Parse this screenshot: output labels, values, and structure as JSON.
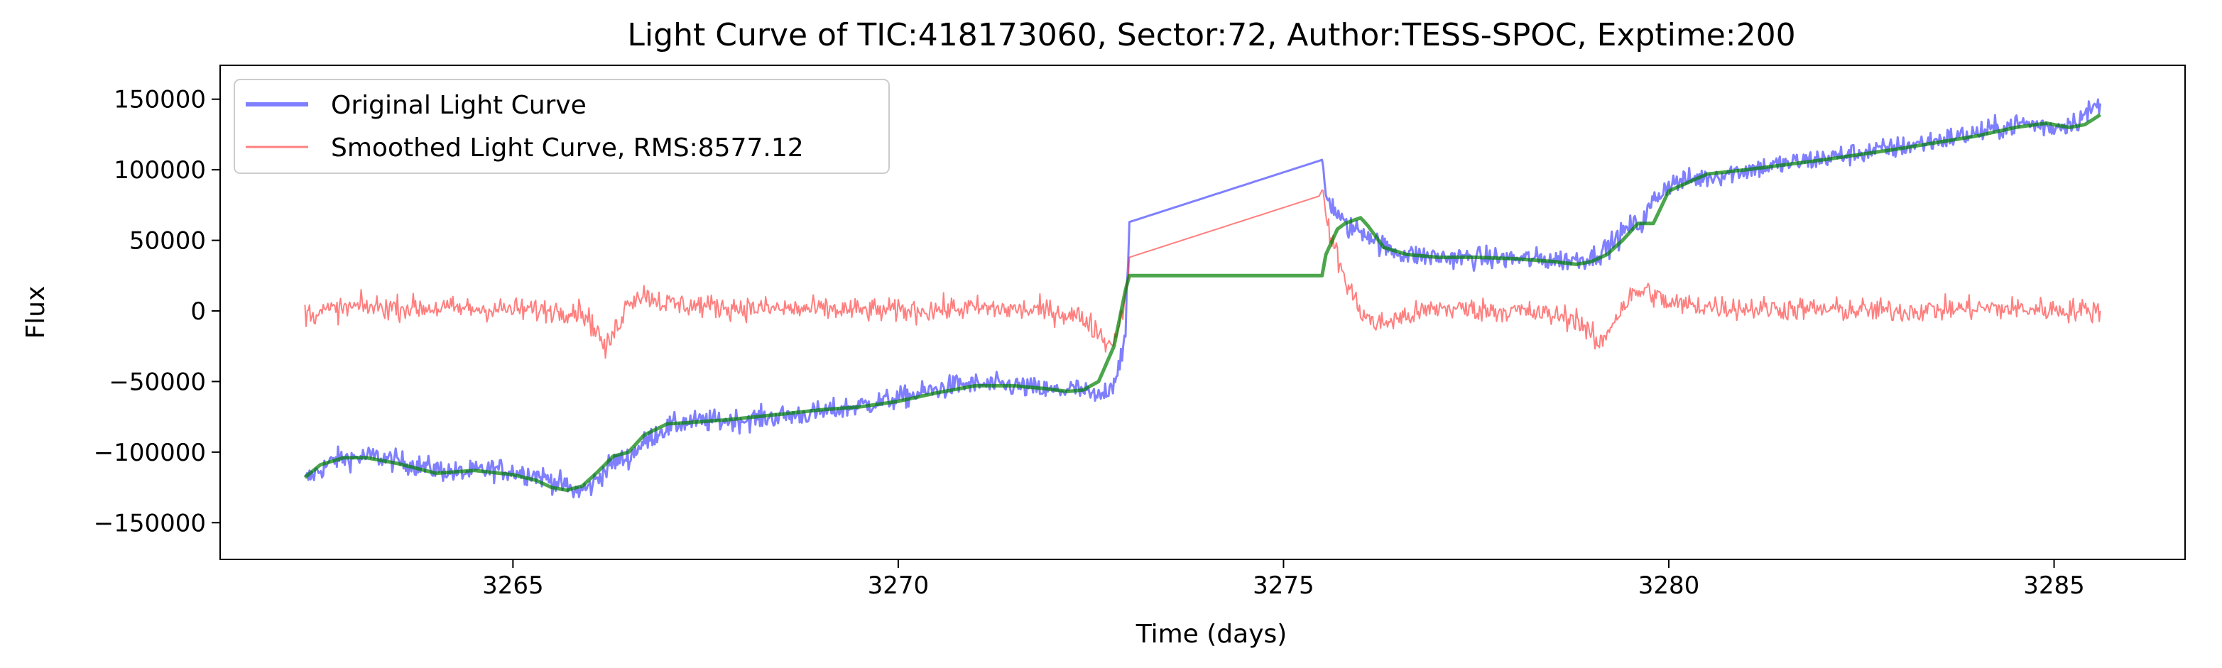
{
  "chart_data": {
    "type": "line",
    "title": "Light Curve of TIC:418173060, Sector:72, Author:TESS-SPOC, Exptime:200",
    "xlabel": "Time (days)",
    "ylabel": "Flux",
    "xlim": [
      3261.2,
      3286.7
    ],
    "ylim": [
      -176000,
      174000
    ],
    "xticks": [
      3265,
      3270,
      3275,
      3280,
      3285
    ],
    "xtick_labels": [
      "3265",
      "3270",
      "3275",
      "3280",
      "3285"
    ],
    "yticks": [
      -150000,
      -100000,
      -50000,
      0,
      50000,
      100000,
      150000
    ],
    "ytick_labels": [
      "−150000",
      "−100000",
      "−50000",
      "0",
      "50000",
      "100000",
      "150000"
    ],
    "grid": false,
    "legend_position": "top-left",
    "legend": [
      "Original Light Curve",
      "Smoothed Light Curve, RMS:8577.12"
    ],
    "series": [
      {
        "name": "Original Light Curve",
        "color": "#0000ff",
        "noise": 7000,
        "x": [
          3262.3,
          3262.7,
          3263.2,
          3263.8,
          3264.3,
          3264.8,
          3265.3,
          3265.6,
          3265.8,
          3266.0,
          3266.1,
          3266.2,
          3266.3,
          3266.5,
          3266.6,
          3266.9,
          3267.2,
          3268.0,
          3269.0,
          3270.0,
          3270.8,
          3271.5,
          3272.0,
          3272.3,
          3272.6,
          3272.8,
          3272.95,
          3273.0,
          3275.5,
          3275.55,
          3275.8,
          3276.1,
          3276.3,
          3276.6,
          3277.0,
          3278.0,
          3278.7,
          3279.0,
          3279.2,
          3279.5,
          3279.65,
          3279.8,
          3280.0,
          3281.0,
          3282.0,
          3283.0,
          3284.0,
          3284.6,
          3285.0,
          3285.3,
          3285.6
        ],
        "y": [
          -120000,
          -105000,
          -103000,
          -110000,
          -115000,
          -112000,
          -116000,
          -122000,
          -128000,
          -125000,
          -118000,
          -113000,
          -107000,
          -104000,
          -98000,
          -85000,
          -79000,
          -77000,
          -72000,
          -62000,
          -52000,
          -53000,
          -57000,
          -55000,
          -62000,
          -50000,
          -20000,
          63000,
          107000,
          82000,
          60000,
          55000,
          45000,
          40000,
          38000,
          37000,
          36000,
          38000,
          45000,
          60000,
          62000,
          78000,
          90000,
          100000,
          108000,
          116000,
          126000,
          133000,
          130000,
          135000,
          147000
        ]
      },
      {
        "name": "Smoothed Light Curve, RMS:8577.12",
        "color": "#ff0000",
        "noise": 7500,
        "x": [
          3262.3,
          3263.0,
          3264.0,
          3265.0,
          3265.9,
          3266.1,
          3266.2,
          3266.4,
          3266.5,
          3266.7,
          3267.0,
          3268.0,
          3269.0,
          3270.0,
          3271.0,
          3272.0,
          3272.4,
          3272.6,
          3272.75,
          3272.9,
          3273.0,
          3275.5,
          3275.6,
          3275.8,
          3276.0,
          3276.2,
          3276.5,
          3277.0,
          3278.0,
          3278.8,
          3279.0,
          3279.1,
          3279.3,
          3279.5,
          3279.7,
          3280.0,
          3281.0,
          3282.0,
          3283.0,
          3284.0,
          3285.0,
          3285.6
        ],
        "y": [
          -2000,
          3000,
          2000,
          1000,
          0,
          -15000,
          -28000,
          -5000,
          8000,
          12000,
          5000,
          2000,
          1000,
          0,
          2000,
          0,
          -5000,
          -15000,
          -25000,
          -5000,
          38000,
          82000,
          55000,
          22000,
          0,
          -10000,
          -5000,
          2000,
          0,
          -5000,
          -18000,
          -25000,
          -5000,
          10000,
          15000,
          5000,
          2000,
          1000,
          0,
          2000,
          1000,
          0
        ]
      },
      {
        "color": "#008000",
        "noise": 0,
        "x": [
          3262.3,
          3262.5,
          3262.8,
          3263.1,
          3263.5,
          3264.0,
          3264.5,
          3265.0,
          3265.3,
          3265.5,
          3265.7,
          3265.9,
          3266.1,
          3266.3,
          3266.5,
          3266.7,
          3267.0,
          3267.3,
          3267.8,
          3268.5,
          3269.0,
          3269.5,
          3270.0,
          3270.5,
          3271.0,
          3271.5,
          3271.9,
          3272.2,
          3272.4,
          3272.6,
          3272.8,
          3272.95,
          3273.0,
          3275.5,
          3275.55,
          3275.7,
          3275.8,
          3276.0,
          3276.1,
          3276.3,
          3276.6,
          3277.0,
          3277.5,
          3278.0,
          3278.5,
          3278.8,
          3279.0,
          3279.2,
          3279.4,
          3279.6,
          3279.8,
          3280.0,
          3280.5,
          3281.0,
          3282.0,
          3283.0,
          3284.0,
          3284.5,
          3284.9,
          3285.2,
          3285.4,
          3285.6
        ],
        "y": [
          -118000,
          -109000,
          -104000,
          -104000,
          -108000,
          -115000,
          -113000,
          -116000,
          -120000,
          -125000,
          -127000,
          -124000,
          -114000,
          -103000,
          -100000,
          -88000,
          -80000,
          -79000,
          -77000,
          -73000,
          -70000,
          -68000,
          -64000,
          -58000,
          -53000,
          -53000,
          -55000,
          -57000,
          -56000,
          -50000,
          -25000,
          15000,
          25000,
          25000,
          40000,
          58000,
          62000,
          66000,
          60000,
          45000,
          40000,
          38000,
          38000,
          37000,
          35000,
          33000,
          35000,
          40000,
          50000,
          62000,
          62000,
          85000,
          97000,
          100000,
          107000,
          115000,
          124000,
          130000,
          133000,
          130000,
          132000,
          139000
        ]
      }
    ]
  }
}
